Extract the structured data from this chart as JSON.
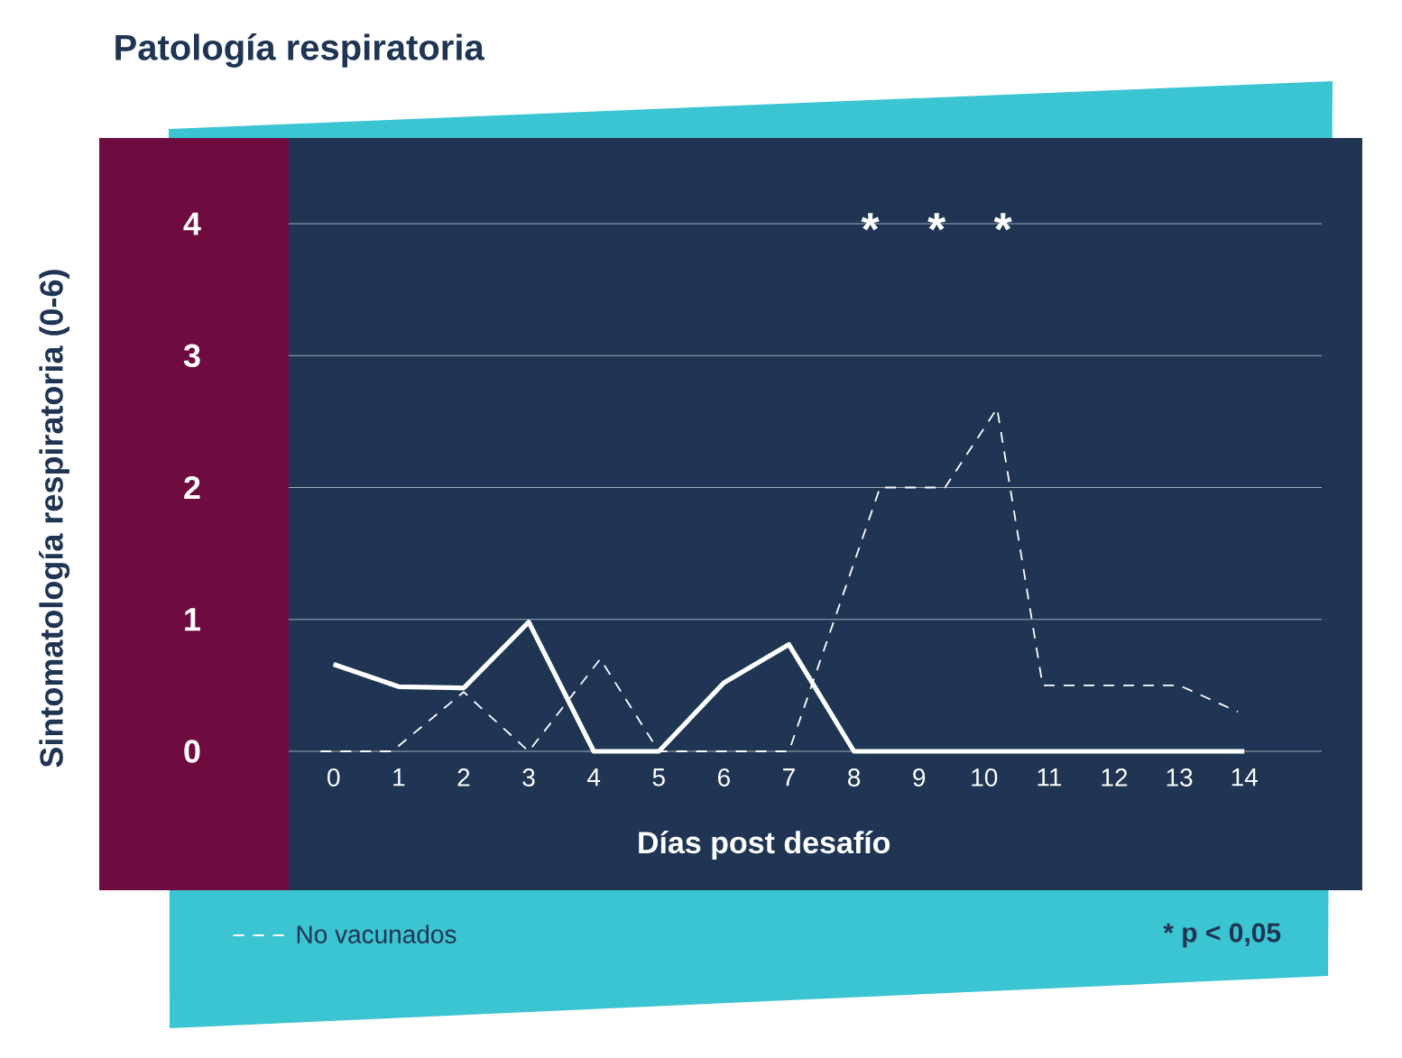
{
  "chart_data": {
    "type": "line",
    "title": "Patología respiratoria",
    "xlabel": "Días post desafío",
    "ylabel": "Sintomatología respiratoria (0-6)",
    "x": [
      0,
      1,
      2,
      3,
      4,
      5,
      6,
      7,
      8,
      9,
      10,
      11,
      12,
      13,
      14
    ],
    "xlim": [
      -0.69,
      15.19
    ],
    "ylim": [
      0,
      4.65
    ],
    "xticks": [
      0,
      1,
      2,
      3,
      4,
      5,
      6,
      7,
      8,
      9,
      10,
      11,
      12,
      13,
      14
    ],
    "yticks": [
      0,
      1,
      2,
      3,
      4
    ],
    "grid": "y",
    "legend": "bottom left",
    "marker": "none",
    "series": [
      {
        "color": "#ffffff",
        "line_style": "solid",
        "values": [
          0.66,
          0.49,
          0.48,
          0.98,
          0,
          0,
          0.52,
          0.81,
          0,
          0,
          0,
          0,
          0,
          0,
          0
        ]
      },
      {
        "name": "No vacunados",
        "color": "#ffffff",
        "line_style": "dashed",
        "x": [
          -0.2,
          0.9,
          2,
          3,
          4.1,
          5,
          6,
          7,
          8.4,
          9.4,
          10.2,
          10.9,
          12,
          13,
          13.9
        ],
        "values": [
          0,
          0,
          0.45,
          0,
          0.7,
          0,
          0,
          0,
          2.0,
          2.0,
          2.6,
          0.5,
          0.5,
          0.5,
          0.3
        ]
      }
    ],
    "annotations": [
      "*",
      "*",
      "*",
      "* p < 0,05"
    ]
  }
}
